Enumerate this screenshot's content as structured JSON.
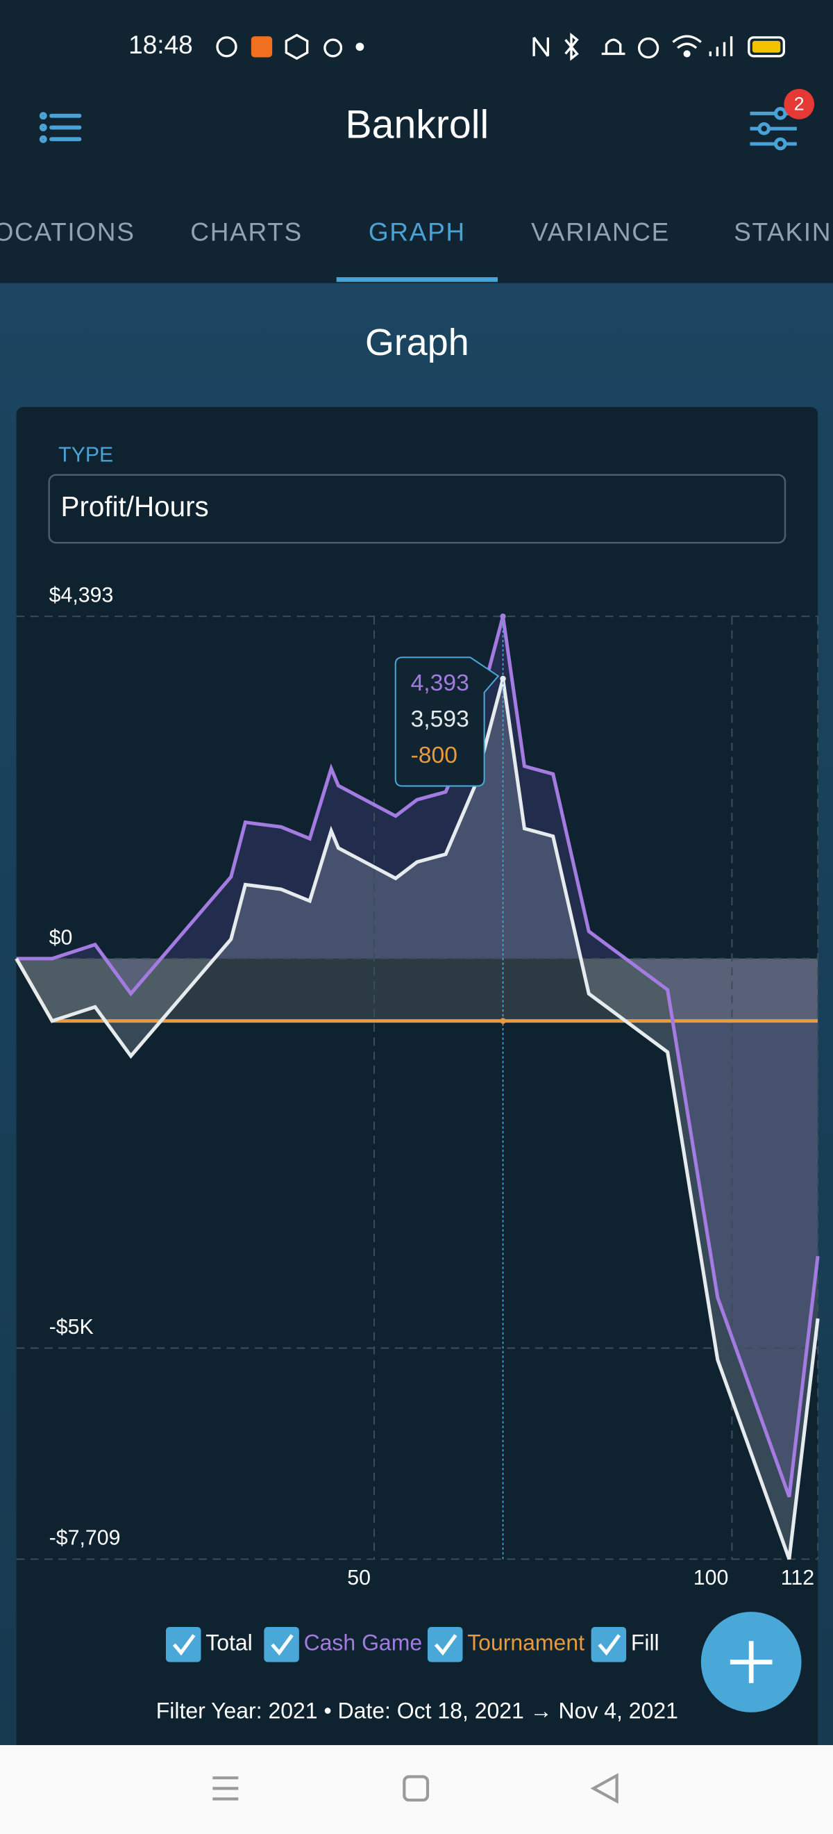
{
  "status_bar": {
    "time": "18:48"
  },
  "header": {
    "title": "Bankroll",
    "filter_badge": 2
  },
  "tabs": {
    "items": [
      "OCATIONS",
      "CHARTS",
      "GRAPH",
      "VARIANCE",
      "STAKIN"
    ],
    "selected": 2
  },
  "section_title": "Graph",
  "type_field": {
    "label": "TYPE",
    "value": "Profit/Hours"
  },
  "chart_data": {
    "type": "line",
    "x": [
      0,
      5,
      11,
      16,
      30,
      32,
      37,
      41,
      44,
      45,
      53,
      56,
      60,
      64,
      68,
      71,
      75,
      80,
      91,
      98,
      108,
      112
    ],
    "xlim": [
      0,
      112
    ],
    "xticks": [
      50,
      100,
      112
    ],
    "ylim": [
      -7709,
      4393
    ],
    "yticks": [
      {
        "value": 4393,
        "label": "$4,393"
      },
      {
        "value": 0,
        "label": "$0"
      },
      {
        "value": -5000,
        "label": "-$5K"
      },
      {
        "value": -7709,
        "label": "-$7,709"
      }
    ],
    "grid": true,
    "series": [
      {
        "name": "Total",
        "color": "#e6ebee",
        "values": [
          0,
          -800,
          -620,
          -1250,
          250,
          950,
          890,
          740,
          1640,
          1420,
          1030,
          1240,
          1340,
          2200,
          3593,
          1670,
          1570,
          -450,
          -1200,
          -5150,
          -7709,
          -4620
        ]
      },
      {
        "name": "Cash Game",
        "color": "#a47be0",
        "values": [
          0,
          0,
          180,
          -450,
          1050,
          1750,
          1690,
          1540,
          2440,
          2220,
          1830,
          2040,
          2140,
          3000,
          4393,
          2470,
          2370,
          350,
          -400,
          -4350,
          -6909,
          -3820
        ]
      },
      {
        "name": "Tournament",
        "color": "#e89a3c",
        "values": [
          0,
          -800,
          -800,
          -800,
          -800,
          -800,
          -800,
          -800,
          -800,
          -800,
          -800,
          -800,
          -800,
          -800,
          -800,
          -800,
          -800,
          -800,
          -800,
          -800,
          -800,
          -800
        ]
      }
    ],
    "fill": {
      "label": "Fill",
      "enabled": true
    },
    "tooltip": {
      "x": 68,
      "values": [
        4393,
        3593,
        -800
      ],
      "value_labels": [
        "4,393",
        "3,593",
        "-800"
      ]
    }
  },
  "filter_text": "Filter Year: 2021 • Date: Oct 18, 2021 → Nov 4, 2021"
}
